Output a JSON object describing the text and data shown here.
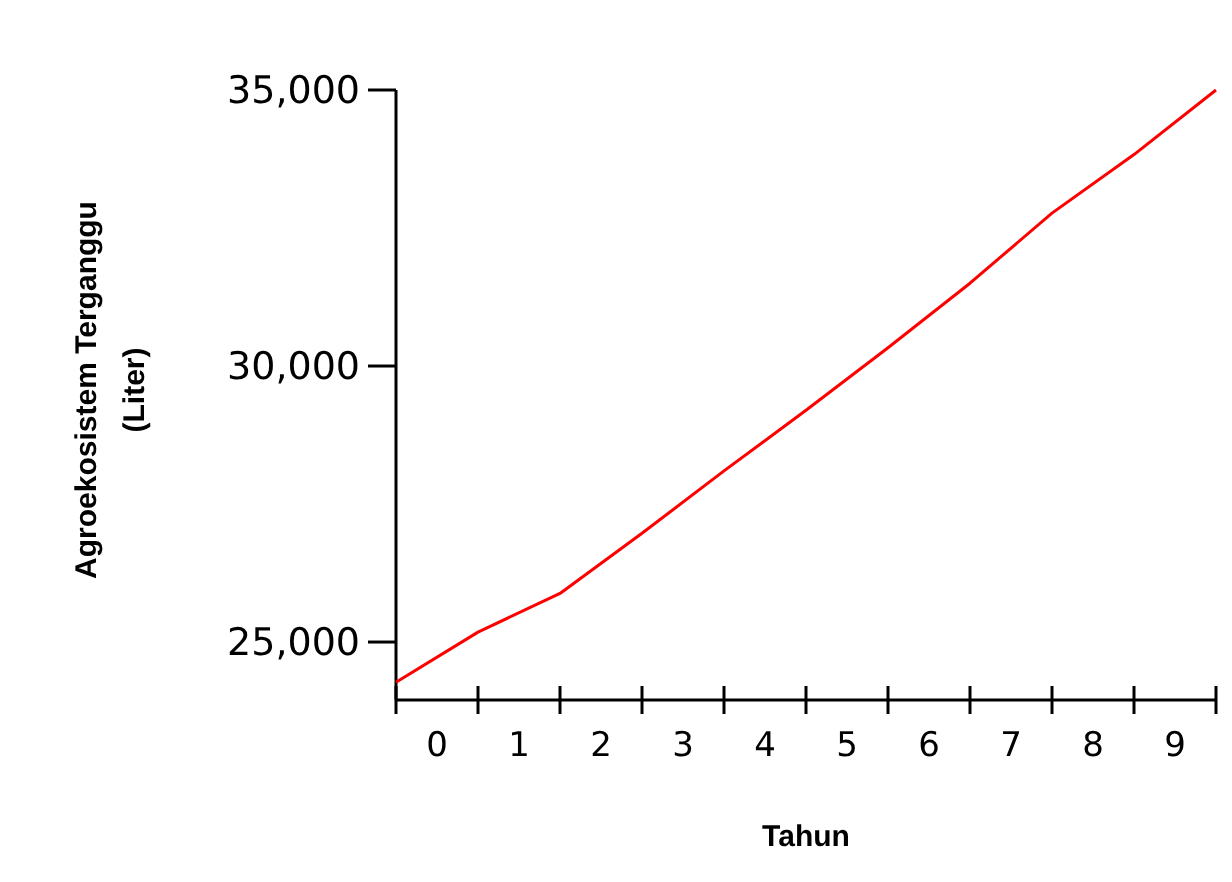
{
  "chart_data": {
    "type": "line",
    "xlabel": "Tahun",
    "ylabel": "Agroekosistem Terganggu\n(Liter)",
    "x": [
      0,
      1,
      2,
      3,
      4,
      5,
      6,
      7,
      8,
      9,
      10
    ],
    "series": [
      {
        "color": "#ff0000",
        "values": [
          24270,
          25180,
          25880,
          26970,
          28100,
          29200,
          30330,
          31500,
          32770,
          33830,
          35000
        ]
      }
    ],
    "xlim": [
      0,
      10
    ],
    "xticks": [
      {
        "value": 0,
        "label": null
      },
      {
        "value": 0.5,
        "label": "0"
      },
      {
        "value": 1,
        "label": null
      },
      {
        "value": 1.5,
        "label": "1"
      },
      {
        "value": 2,
        "label": null
      },
      {
        "value": 2.5,
        "label": "2"
      },
      {
        "value": 3,
        "label": null
      },
      {
        "value": 3.5,
        "label": "3"
      },
      {
        "value": 4,
        "label": null
      },
      {
        "value": 4.5,
        "label": "4"
      },
      {
        "value": 5,
        "label": null
      },
      {
        "value": 5.5,
        "label": "5"
      },
      {
        "value": 6,
        "label": null
      },
      {
        "value": 6.5,
        "label": "6"
      },
      {
        "value": 7,
        "label": null
      },
      {
        "value": 7.5,
        "label": "7"
      },
      {
        "value": 8,
        "label": null
      },
      {
        "value": 8.5,
        "label": "8"
      },
      {
        "value": 9,
        "label": null
      },
      {
        "value": 9.5,
        "label": "9"
      },
      {
        "value": 10,
        "label": null
      }
    ],
    "ylim": [
      23950,
      35000
    ],
    "yticks": [
      {
        "value": 25000,
        "label": "25,000"
      },
      {
        "value": 30000,
        "label": "30,000"
      },
      {
        "value": 35000,
        "label": "35,000"
      }
    ],
    "marker": "none",
    "line_style": "solid"
  }
}
